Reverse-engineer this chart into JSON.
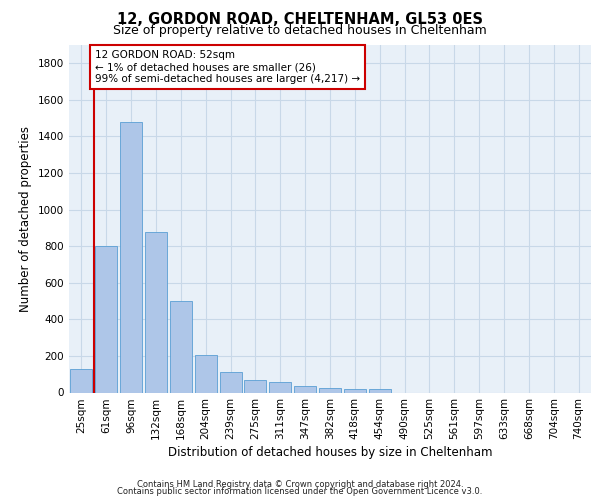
{
  "title1": "12, GORDON ROAD, CHELTENHAM, GL53 0ES",
  "title2": "Size of property relative to detached houses in Cheltenham",
  "xlabel": "Distribution of detached houses by size in Cheltenham",
  "ylabel": "Number of detached properties",
  "categories": [
    "25sqm",
    "61sqm",
    "96sqm",
    "132sqm",
    "168sqm",
    "204sqm",
    "239sqm",
    "275sqm",
    "311sqm",
    "347sqm",
    "382sqm",
    "418sqm",
    "454sqm",
    "490sqm",
    "525sqm",
    "561sqm",
    "597sqm",
    "633sqm",
    "668sqm",
    "704sqm",
    "740sqm"
  ],
  "values": [
    130,
    800,
    1480,
    875,
    500,
    205,
    110,
    70,
    55,
    35,
    25,
    20,
    20,
    0,
    0,
    0,
    0,
    0,
    0,
    0,
    0
  ],
  "bar_color": "#aec6e8",
  "bar_edgecolor": "#5a9fd4",
  "highlight_color": "#cc0000",
  "annotation_text": "12 GORDON ROAD: 52sqm\n← 1% of detached houses are smaller (26)\n99% of semi-detached houses are larger (4,217) →",
  "annotation_box_edgecolor": "#cc0000",
  "ylim": [
    0,
    1900
  ],
  "yticks": [
    0,
    200,
    400,
    600,
    800,
    1000,
    1200,
    1400,
    1600,
    1800
  ],
  "grid_color": "#c8d8e8",
  "background_color": "#e8f0f8",
  "footer_line1": "Contains HM Land Registry data © Crown copyright and database right 2024.",
  "footer_line2": "Contains public sector information licensed under the Open Government Licence v3.0."
}
